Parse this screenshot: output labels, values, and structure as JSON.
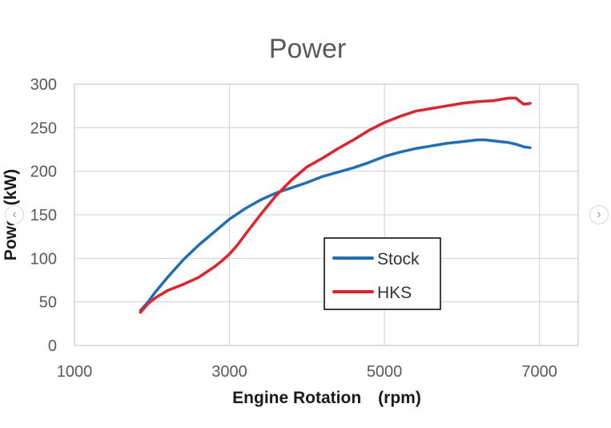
{
  "chart_data": {
    "type": "line",
    "title": "Power",
    "xlabel": "Engine Rotation　(rpm)",
    "ylabel": "Power (kW)",
    "xlim": [
      1000,
      7500
    ],
    "ylim": [
      0,
      300
    ],
    "xticks": [
      1000,
      3000,
      5000,
      7000
    ],
    "yticks": [
      0,
      50,
      100,
      150,
      200,
      250,
      300
    ],
    "grid": true,
    "legend_position": "center-right",
    "series": [
      {
        "name": "Stock",
        "color": "#1e6fb8",
        "x": [
          1850,
          1950,
          2050,
          2200,
          2400,
          2600,
          2800,
          3000,
          3200,
          3400,
          3600,
          3800,
          4000,
          4200,
          4400,
          4600,
          4800,
          5000,
          5200,
          5400,
          5600,
          5800,
          6000,
          6200,
          6300,
          6400,
          6500,
          6600,
          6700,
          6800,
          6880
        ],
        "y": [
          40,
          50,
          62,
          78,
          98,
          115,
          130,
          145,
          157,
          167,
          175,
          181,
          187,
          194,
          199,
          204,
          210,
          217,
          222,
          226,
          229,
          232,
          234,
          236,
          236,
          235,
          234,
          233,
          231,
          228,
          227
        ]
      },
      {
        "name": "HKS",
        "color": "#e8202a",
        "x": [
          1850,
          1950,
          2050,
          2200,
          2400,
          2600,
          2800,
          2900,
          3000,
          3100,
          3200,
          3400,
          3600,
          3800,
          4000,
          4200,
          4400,
          4600,
          4800,
          5000,
          5200,
          5400,
          5600,
          5800,
          6000,
          6200,
          6400,
          6600,
          6700,
          6750,
          6800,
          6880
        ],
        "y": [
          38,
          48,
          55,
          63,
          70,
          78,
          90,
          97,
          105,
          115,
          127,
          150,
          172,
          190,
          205,
          215,
          226,
          236,
          247,
          256,
          263,
          269,
          272,
          275,
          278,
          280,
          281,
          284,
          284,
          280,
          277,
          278
        ]
      }
    ]
  },
  "navigation": {
    "prev_label": "‹",
    "next_label": "›"
  }
}
